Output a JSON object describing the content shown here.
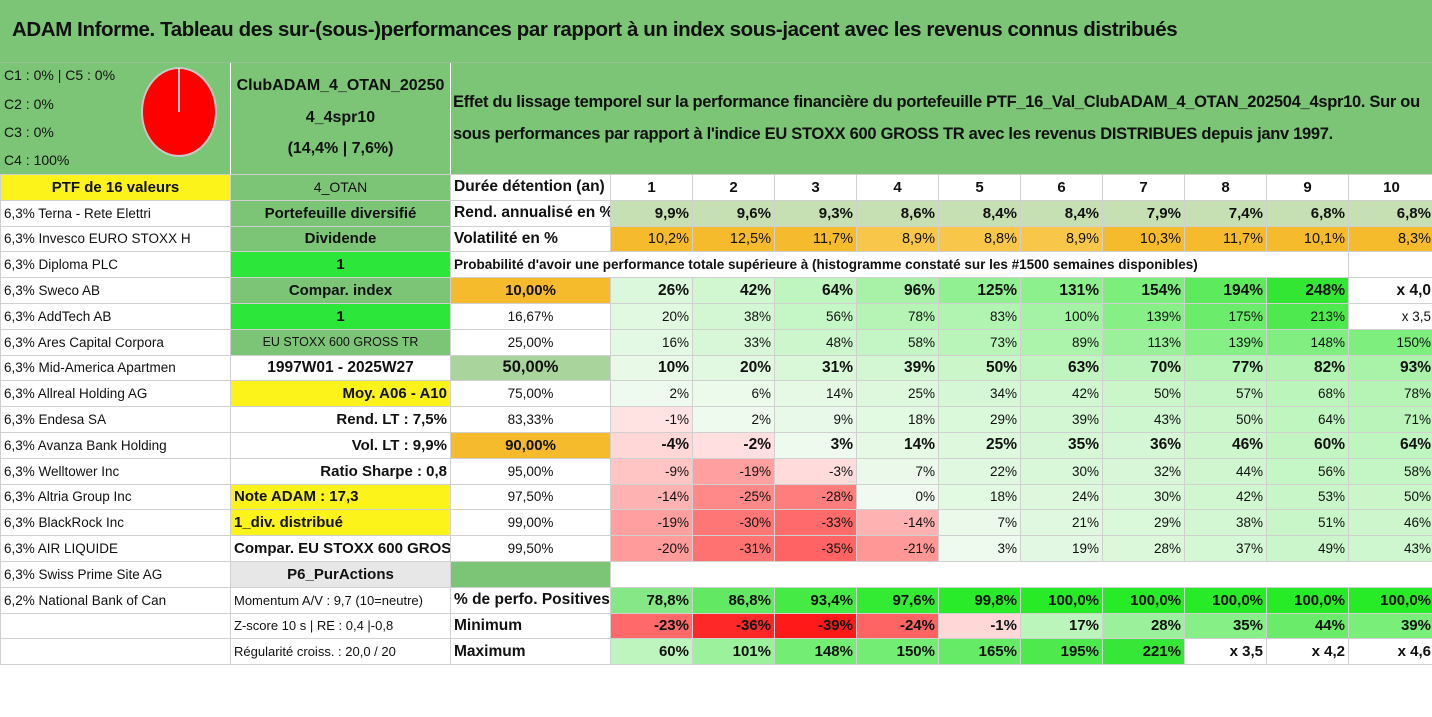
{
  "title": "ADAM Informe. Tableau des sur-(sous-)performances par rapport à un index sous-jacent avec les revenus connus distribués",
  "pie_labels": [
    "C1 : 0% | C5 : 0%",
    "C2 : 0%",
    "C3 : 0%",
    "C4 : 100%"
  ],
  "pie": {
    "color": "#ff0000",
    "C4": 100
  },
  "fund": {
    "line1": "ClubADAM_4_OTAN_20250",
    "line2": "4_4spr10",
    "line3": "(14,4% | 7,6%)"
  },
  "description": {
    "line1": "Effet du lissage temporel sur la performance financière du portefeuille PTF_16_Val_ClubADAM_4_OTAN_202504_4spr10. Sur ou",
    "line2": "sous performances par rapport à l'indice EU STOXX 600 GROSS TR avec les revenus DISTRIBUES depuis janv 1997."
  },
  "header": {
    "ptf": "PTF de 16 valeurs",
    "code": "4_OTAN",
    "duration": "Durée détention (an)",
    "years": [
      "1",
      "2",
      "3",
      "4",
      "5",
      "6",
      "7",
      "8",
      "9",
      "10"
    ]
  },
  "holdings": [
    "6,3% Terna - Rete Elettri",
    "6,3% Invesco EURO STOXX H",
    "6,3% Diploma PLC",
    "6,3% Sweco AB",
    "6,3% AddTech AB",
    "6,3% Ares Capital Corpora",
    "6,3% Mid-America Apartmen",
    "6,3% Allreal Holding AG",
    "6,3% Endesa SA",
    "6,3% Avanza Bank Holding",
    "6,3% Welltower Inc",
    "6,3% Altria Group Inc",
    "6,3% BlackRock Inc",
    "6,3% AIR LIQUIDE",
    "6,3% Swiss Prime Site AG",
    "6,2% National Bank of Can"
  ],
  "info": [
    "Portefeuille diversifié",
    "Dividende",
    "1",
    "Compar. index",
    "1",
    "EU STOXX 600 GROSS TR",
    "1997W01 - 2025W27",
    "Moy. A06 - A10",
    "Rend. LT : 7,5%",
    "Vol. LT : 9,9%",
    "Ratio Sharpe : 0,8",
    "Note ADAM : 17,3",
    "1_div. distribué",
    "Compar. EU STOXX 600 GROSS TR",
    "P6_PurActions",
    "Momentum A/V : 9,7 (10=neutre)",
    "Z-score 10 s | RE : 0,4 |-0,8",
    "Régularité croiss. : 20,0 / 20"
  ],
  "rend": {
    "label": "Rend. annualisé en %",
    "values": [
      "9,9%",
      "9,6%",
      "9,3%",
      "8,6%",
      "8,4%",
      "8,4%",
      "7,9%",
      "7,4%",
      "6,8%",
      "6,8%"
    ]
  },
  "vol": {
    "label": "Volatilité en %",
    "values": [
      "10,2%",
      "12,5%",
      "11,7%",
      "8,9%",
      "8,8%",
      "8,9%",
      "10,3%",
      "11,7%",
      "10,1%",
      "8,3%"
    ]
  },
  "prob_title": "Probabilité d'avoir une performance totale supérieure à (histogramme constaté sur les #1500 semaines disponibles)",
  "quantiles": [
    {
      "p": "10,00%",
      "values": [
        "26%",
        "42%",
        "64%",
        "96%",
        "125%",
        "131%",
        "154%",
        "194%",
        "248%",
        "x 4,0"
      ]
    },
    {
      "p": "16,67%",
      "values": [
        "20%",
        "38%",
        "56%",
        "78%",
        "83%",
        "100%",
        "139%",
        "175%",
        "213%",
        "x 3,5"
      ]
    },
    {
      "p": "25,00%",
      "values": [
        "16%",
        "33%",
        "48%",
        "58%",
        "73%",
        "89%",
        "113%",
        "139%",
        "148%",
        "150%"
      ]
    },
    {
      "p": "50,00%",
      "values": [
        "10%",
        "20%",
        "31%",
        "39%",
        "50%",
        "63%",
        "70%",
        "77%",
        "82%",
        "93%"
      ]
    },
    {
      "p": "75,00%",
      "values": [
        "2%",
        "6%",
        "14%",
        "25%",
        "34%",
        "42%",
        "50%",
        "57%",
        "68%",
        "78%"
      ]
    },
    {
      "p": "83,33%",
      "values": [
        "-1%",
        "2%",
        "9%",
        "18%",
        "29%",
        "39%",
        "43%",
        "50%",
        "64%",
        "71%"
      ]
    },
    {
      "p": "90,00%",
      "values": [
        "-4%",
        "-2%",
        "3%",
        "14%",
        "25%",
        "35%",
        "36%",
        "46%",
        "60%",
        "64%"
      ]
    },
    {
      "p": "95,00%",
      "values": [
        "-9%",
        "-19%",
        "-3%",
        "7%",
        "22%",
        "30%",
        "32%",
        "44%",
        "56%",
        "58%"
      ]
    },
    {
      "p": "97,50%",
      "values": [
        "-14%",
        "-25%",
        "-28%",
        "0%",
        "18%",
        "24%",
        "30%",
        "42%",
        "53%",
        "50%"
      ]
    },
    {
      "p": "99,00%",
      "values": [
        "-19%",
        "-30%",
        "-33%",
        "-14%",
        "7%",
        "21%",
        "29%",
        "38%",
        "51%",
        "46%"
      ]
    },
    {
      "p": "99,50%",
      "values": [
        "-20%",
        "-31%",
        "-35%",
        "-21%",
        "3%",
        "19%",
        "28%",
        "37%",
        "49%",
        "43%"
      ]
    }
  ],
  "pos": {
    "label": "% de perfo. Positives",
    "values": [
      "78,8%",
      "86,8%",
      "93,4%",
      "97,6%",
      "99,8%",
      "100,0%",
      "100,0%",
      "100,0%",
      "100,0%",
      "100,0%"
    ]
  },
  "min": {
    "label": "Minimum",
    "values": [
      "-23%",
      "-36%",
      "-39%",
      "-24%",
      "-1%",
      "17%",
      "28%",
      "35%",
      "44%",
      "39%"
    ]
  },
  "max": {
    "label": "Maximum",
    "values": [
      "60%",
      "101%",
      "148%",
      "150%",
      "165%",
      "195%",
      "221%",
      "x 3,5",
      "x 4,2",
      "x 4,6"
    ]
  }
}
